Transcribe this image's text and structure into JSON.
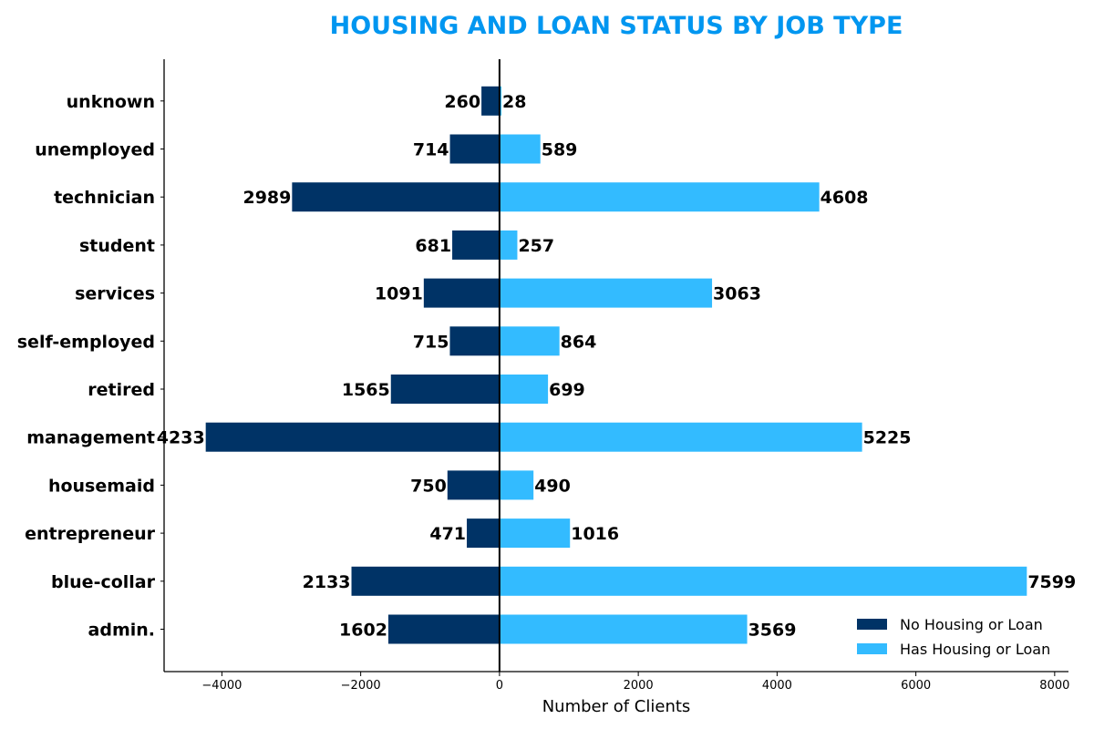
{
  "chart_data": {
    "type": "bar",
    "orientation": "horizontal-diverging",
    "title": "HOUSING AND LOAN STATUS BY JOB TYPE",
    "xlabel": "Number of Clients",
    "ylabel": "",
    "categories": [
      "admin.",
      "blue-collar",
      "entrepreneur",
      "housemaid",
      "management",
      "retired",
      "self-employed",
      "services",
      "student",
      "technician",
      "unemployed",
      "unknown"
    ],
    "series": [
      {
        "name": "No Housing or Loan",
        "color": "#003366",
        "direction": "negative",
        "values": [
          1602,
          2133,
          471,
          750,
          4233,
          1565,
          715,
          1091,
          681,
          2989,
          714,
          260
        ]
      },
      {
        "name": "Has Housing or Loan",
        "color": "#33bbff",
        "direction": "positive",
        "values": [
          3569,
          7599,
          1016,
          490,
          5225,
          699,
          864,
          3063,
          257,
          4608,
          589,
          28
        ]
      }
    ],
    "xlim": [
      -4833,
      8199
    ],
    "xticks": [
      -4000,
      -2000,
      0,
      2000,
      4000,
      6000,
      8000
    ],
    "xtick_labels": [
      "−4000",
      "−2000",
      "0",
      "2000",
      "4000",
      "6000",
      "8000"
    ],
    "grid": false,
    "legend_position": "lower-right",
    "title_color": "#0096f0"
  }
}
